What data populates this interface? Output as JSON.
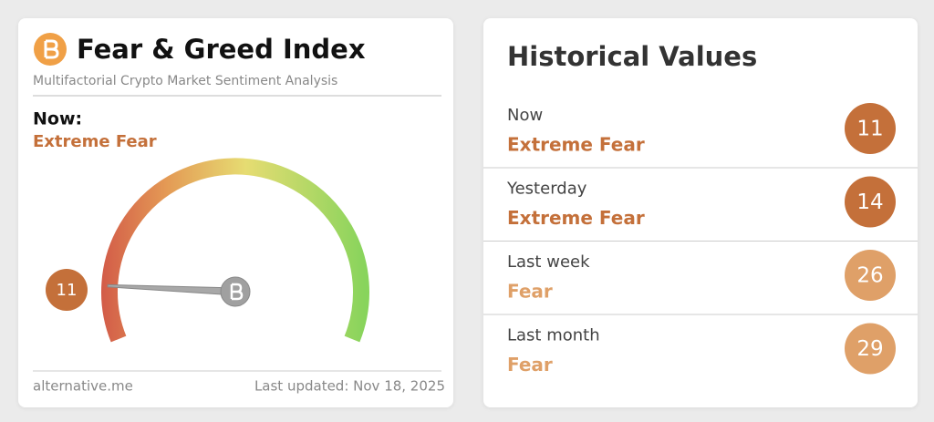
{
  "header": {
    "title": "Fear & Greed Index",
    "subtitle": "Multifactorial Crypto Market Sentiment Analysis"
  },
  "now": {
    "label": "Now:",
    "classification": "Extreme Fear",
    "value": 11,
    "range": [
      0,
      100
    ],
    "color": "#c4703a"
  },
  "footer": {
    "source": "alternative.me",
    "updated": "Last updated: Nov 18, 2025"
  },
  "history": {
    "title": "Historical Values",
    "items": [
      {
        "label": "Now",
        "classification": "Extreme Fear",
        "value": 11,
        "color": "#c4703a"
      },
      {
        "label": "Yesterday",
        "classification": "Extreme Fear",
        "value": 14,
        "color": "#c4703a"
      },
      {
        "label": "Last week",
        "classification": "Fear",
        "value": 26,
        "color": "#dfa068"
      },
      {
        "label": "Last month",
        "classification": "Fear",
        "value": 29,
        "color": "#dfa068"
      }
    ]
  }
}
